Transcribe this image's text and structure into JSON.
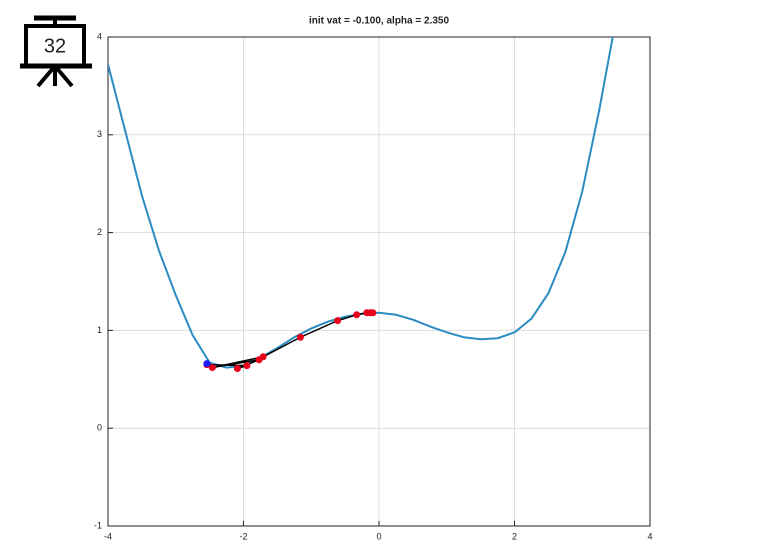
{
  "slide_number": "32",
  "chart_data": {
    "type": "line",
    "title": "init vat = -0.100, alpha = 2.350",
    "xlim": [
      -4,
      4
    ],
    "ylim": [
      -1,
      4
    ],
    "xticks": [
      -4,
      -2,
      0,
      2,
      4
    ],
    "yticks": [
      -1,
      0,
      1,
      2,
      3,
      4
    ],
    "grid": true,
    "series": [
      {
        "color": "#2b8cc4",
        "marker": false,
        "x": [
          -4,
          -3.75,
          -3.5,
          -3.25,
          -3,
          -2.75,
          -2.5,
          -2.25,
          -2,
          -1.75,
          -1.5,
          -1.25,
          -1,
          -0.75,
          -0.5,
          -0.25,
          0,
          0.25,
          0.5,
          0.75,
          1,
          1.25,
          1.5,
          1.75,
          2,
          2.25,
          2.5,
          2.75,
          3,
          3.25,
          3.45
        ],
        "values": [
          3.72,
          3.05,
          2.38,
          1.82,
          1.36,
          0.95,
          0.67,
          0.62,
          0.64,
          0.72,
          0.82,
          0.93,
          1.02,
          1.09,
          1.14,
          1.17,
          1.18,
          1.16,
          1.11,
          1.04,
          0.98,
          0.93,
          0.91,
          0.92,
          0.98,
          1.12,
          1.38,
          1.8,
          2.42,
          3.25,
          4.0
        ]
      },
      {
        "color": "#e8001c",
        "marker": true,
        "line_color": "#000000",
        "x": [
          -0.09,
          -0.13,
          -0.18,
          -0.33,
          -0.61,
          -1.16,
          -1.71,
          -2.46,
          -1.77,
          -2.09,
          -1.95,
          -2.54
        ],
        "values": [
          1.18,
          1.18,
          1.18,
          1.16,
          1.1,
          0.93,
          0.73,
          0.62,
          0.7,
          0.61,
          0.64,
          0.65
        ]
      },
      {
        "color": "#1a1aff",
        "marker": true,
        "x": [
          -2.54
        ],
        "values": [
          0.66
        ]
      }
    ]
  }
}
